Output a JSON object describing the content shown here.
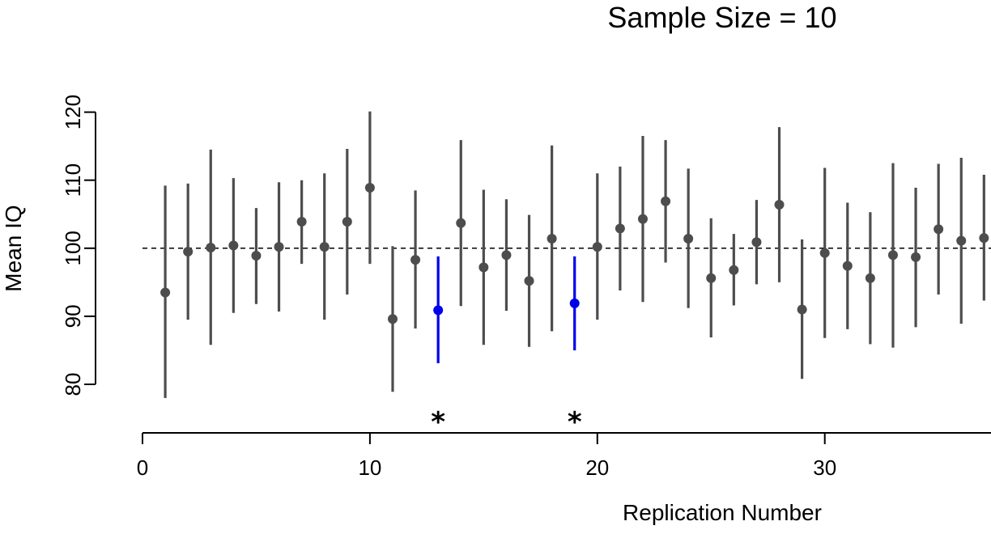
{
  "chart_data": {
    "type": "scatter",
    "title": "Sample Size = 10",
    "xlabel": "Replication Number",
    "ylabel": "Mean IQ",
    "xlim": [
      0,
      37.3
    ],
    "ylim": [
      73,
      120
    ],
    "x_ticks": [
      0,
      10,
      20,
      30
    ],
    "y_ticks": [
      80,
      90,
      100,
      110,
      120
    ],
    "reference_line": {
      "y": 100,
      "style": "dashed"
    },
    "grid": false,
    "colors": {
      "normal": "#4d4d4d",
      "highlight": "#0000ee",
      "marker": "#000000"
    },
    "miss_marker": "*",
    "points": [
      {
        "x": 1,
        "mean": 93.5,
        "low": 78.0,
        "high": 109.2,
        "miss": false
      },
      {
        "x": 2,
        "mean": 99.5,
        "low": 89.5,
        "high": 109.5,
        "miss": false
      },
      {
        "x": 3,
        "mean": 100.1,
        "low": 85.8,
        "high": 114.5,
        "miss": false
      },
      {
        "x": 4,
        "mean": 100.4,
        "low": 90.5,
        "high": 110.3,
        "miss": false
      },
      {
        "x": 5,
        "mean": 98.9,
        "low": 91.8,
        "high": 105.9,
        "miss": false
      },
      {
        "x": 6,
        "mean": 100.2,
        "low": 90.7,
        "high": 109.7,
        "miss": false
      },
      {
        "x": 7,
        "mean": 103.9,
        "low": 97.7,
        "high": 110.0,
        "miss": false
      },
      {
        "x": 8,
        "mean": 100.2,
        "low": 89.5,
        "high": 111.0,
        "miss": false
      },
      {
        "x": 9,
        "mean": 103.9,
        "low": 93.2,
        "high": 114.6,
        "miss": false
      },
      {
        "x": 10,
        "mean": 108.9,
        "low": 97.7,
        "high": 120.1,
        "miss": false
      },
      {
        "x": 11,
        "mean": 89.6,
        "low": 78.9,
        "high": 100.3,
        "miss": false
      },
      {
        "x": 12,
        "mean": 98.3,
        "low": 88.2,
        "high": 108.5,
        "miss": false
      },
      {
        "x": 13,
        "mean": 90.9,
        "low": 83.1,
        "high": 98.8,
        "miss": true
      },
      {
        "x": 14,
        "mean": 103.7,
        "low": 91.5,
        "high": 115.9,
        "miss": false
      },
      {
        "x": 15,
        "mean": 97.2,
        "low": 85.8,
        "high": 108.6,
        "miss": false
      },
      {
        "x": 16,
        "mean": 99.0,
        "low": 90.8,
        "high": 107.2,
        "miss": false
      },
      {
        "x": 17,
        "mean": 95.2,
        "low": 85.5,
        "high": 104.9,
        "miss": false
      },
      {
        "x": 18,
        "mean": 101.4,
        "low": 87.8,
        "high": 115.1,
        "miss": false
      },
      {
        "x": 19,
        "mean": 91.9,
        "low": 85.0,
        "high": 98.8,
        "miss": true
      },
      {
        "x": 20,
        "mean": 100.2,
        "low": 89.5,
        "high": 111.0,
        "miss": false
      },
      {
        "x": 21,
        "mean": 102.9,
        "low": 93.8,
        "high": 112.0,
        "miss": false
      },
      {
        "x": 22,
        "mean": 104.3,
        "low": 92.1,
        "high": 116.5,
        "miss": false
      },
      {
        "x": 23,
        "mean": 106.9,
        "low": 97.9,
        "high": 115.9,
        "miss": false
      },
      {
        "x": 24,
        "mean": 101.4,
        "low": 91.2,
        "high": 111.7,
        "miss": false
      },
      {
        "x": 25,
        "mean": 95.6,
        "low": 86.9,
        "high": 104.4,
        "miss": false
      },
      {
        "x": 26,
        "mean": 96.8,
        "low": 91.6,
        "high": 102.1,
        "miss": false
      },
      {
        "x": 27,
        "mean": 100.9,
        "low": 94.7,
        "high": 107.1,
        "miss": false
      },
      {
        "x": 28,
        "mean": 106.4,
        "low": 95.0,
        "high": 117.8,
        "miss": false
      },
      {
        "x": 29,
        "mean": 91.0,
        "low": 80.8,
        "high": 101.3,
        "miss": false
      },
      {
        "x": 30,
        "mean": 99.3,
        "low": 86.8,
        "high": 111.8,
        "miss": false
      },
      {
        "x": 31,
        "mean": 97.4,
        "low": 88.1,
        "high": 106.7,
        "miss": false
      },
      {
        "x": 32,
        "mean": 95.6,
        "low": 85.9,
        "high": 105.3,
        "miss": false
      },
      {
        "x": 33,
        "mean": 99.0,
        "low": 85.4,
        "high": 112.5,
        "miss": false
      },
      {
        "x": 34,
        "mean": 98.7,
        "low": 88.4,
        "high": 108.9,
        "miss": false
      },
      {
        "x": 35,
        "mean": 102.8,
        "low": 93.2,
        "high": 112.4,
        "miss": false
      },
      {
        "x": 36,
        "mean": 101.1,
        "low": 88.9,
        "high": 113.3,
        "miss": false
      },
      {
        "x": 37,
        "mean": 101.5,
        "low": 92.3,
        "high": 110.8,
        "miss": false
      }
    ]
  }
}
